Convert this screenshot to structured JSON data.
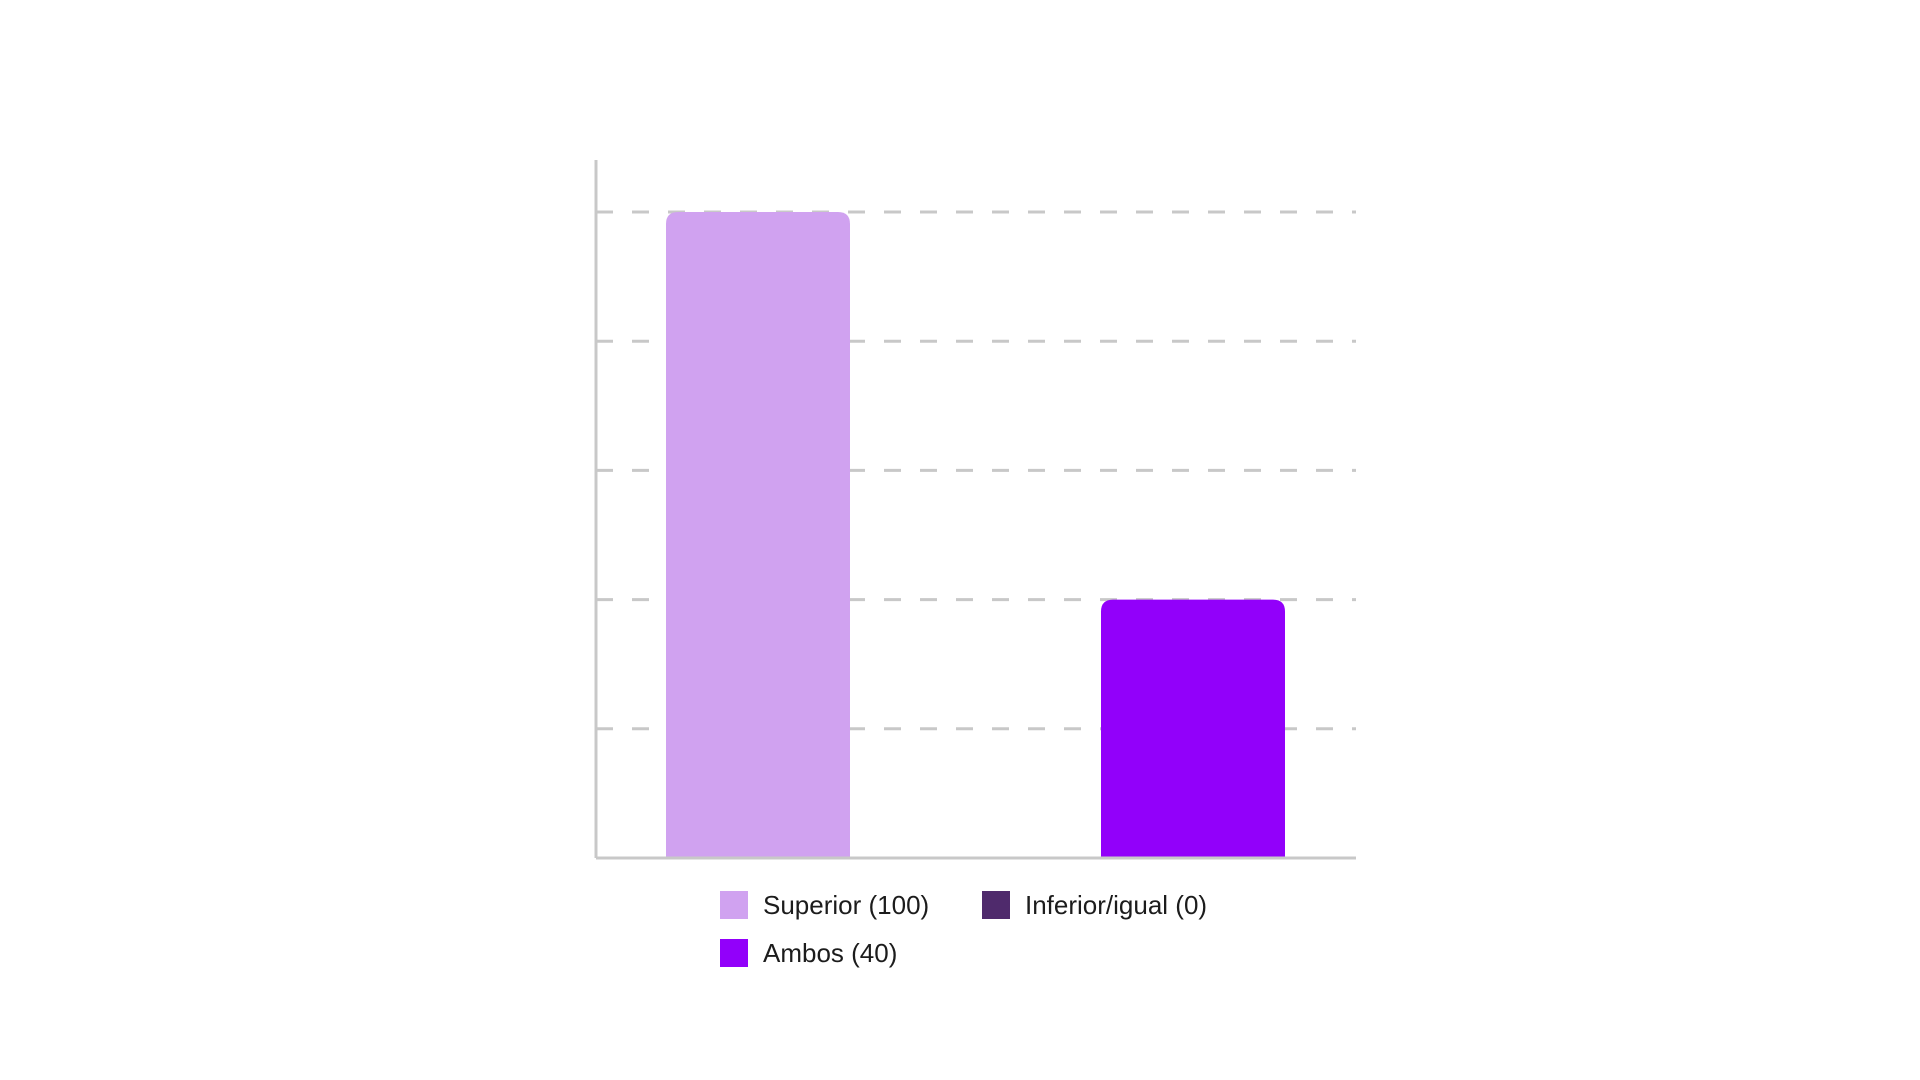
{
  "chart_data": {
    "type": "bar",
    "categories": [
      "Superior",
      "Ambos"
    ],
    "values": [
      100,
      40
    ],
    "colors": [
      "#d0a2f0",
      "#9200fa"
    ],
    "ylim": [
      0,
      100
    ],
    "grid": true,
    "legend_position": "bottom",
    "legend": [
      {
        "label": "Superior (100)",
        "color": "#d0a2f0"
      },
      {
        "label": "Inferior/igual (0)",
        "color": "#4f2a6c"
      },
      {
        "label": "Ambos (40)",
        "color": "#9200fa"
      }
    ]
  },
  "colors": {
    "axis": "#c8c8c8",
    "grid": "#c8c8c8"
  }
}
